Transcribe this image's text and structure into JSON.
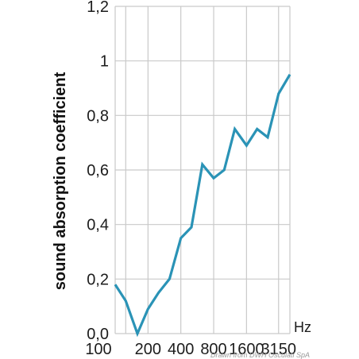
{
  "chart_data": {
    "type": "line",
    "title": "",
    "xlabel": "",
    "ylabel": "sound absorption coefficient",
    "x_unit": "Hz",
    "x_tick_labels": [
      "100",
      "200",
      "400",
      "800",
      "1600",
      "3150"
    ],
    "y_tick_labels": [
      "0,0",
      "0,2",
      "0,4",
      "0,6",
      "0,8",
      "1",
      "1,2"
    ],
    "ylim": [
      0,
      1.2
    ],
    "grid": true,
    "line_color": "#2a93b6",
    "series": [
      {
        "x": [
          100,
          125,
          160,
          200,
          250,
          315,
          400,
          500,
          630,
          800,
          1000,
          1250,
          1600,
          2000,
          2500,
          3150
        ],
        "values": [
          0.18,
          0.12,
          0.0,
          0.09,
          0.15,
          0.2,
          0.35,
          0.39,
          0.62,
          0.57,
          0.6,
          0.75,
          0.69,
          0.75,
          0.72,
          0.88
        ]
      }
    ],
    "x_end": 4000,
    "y_end": 0.95
  },
  "credit": "Drawn from DWH Osculati SpA"
}
